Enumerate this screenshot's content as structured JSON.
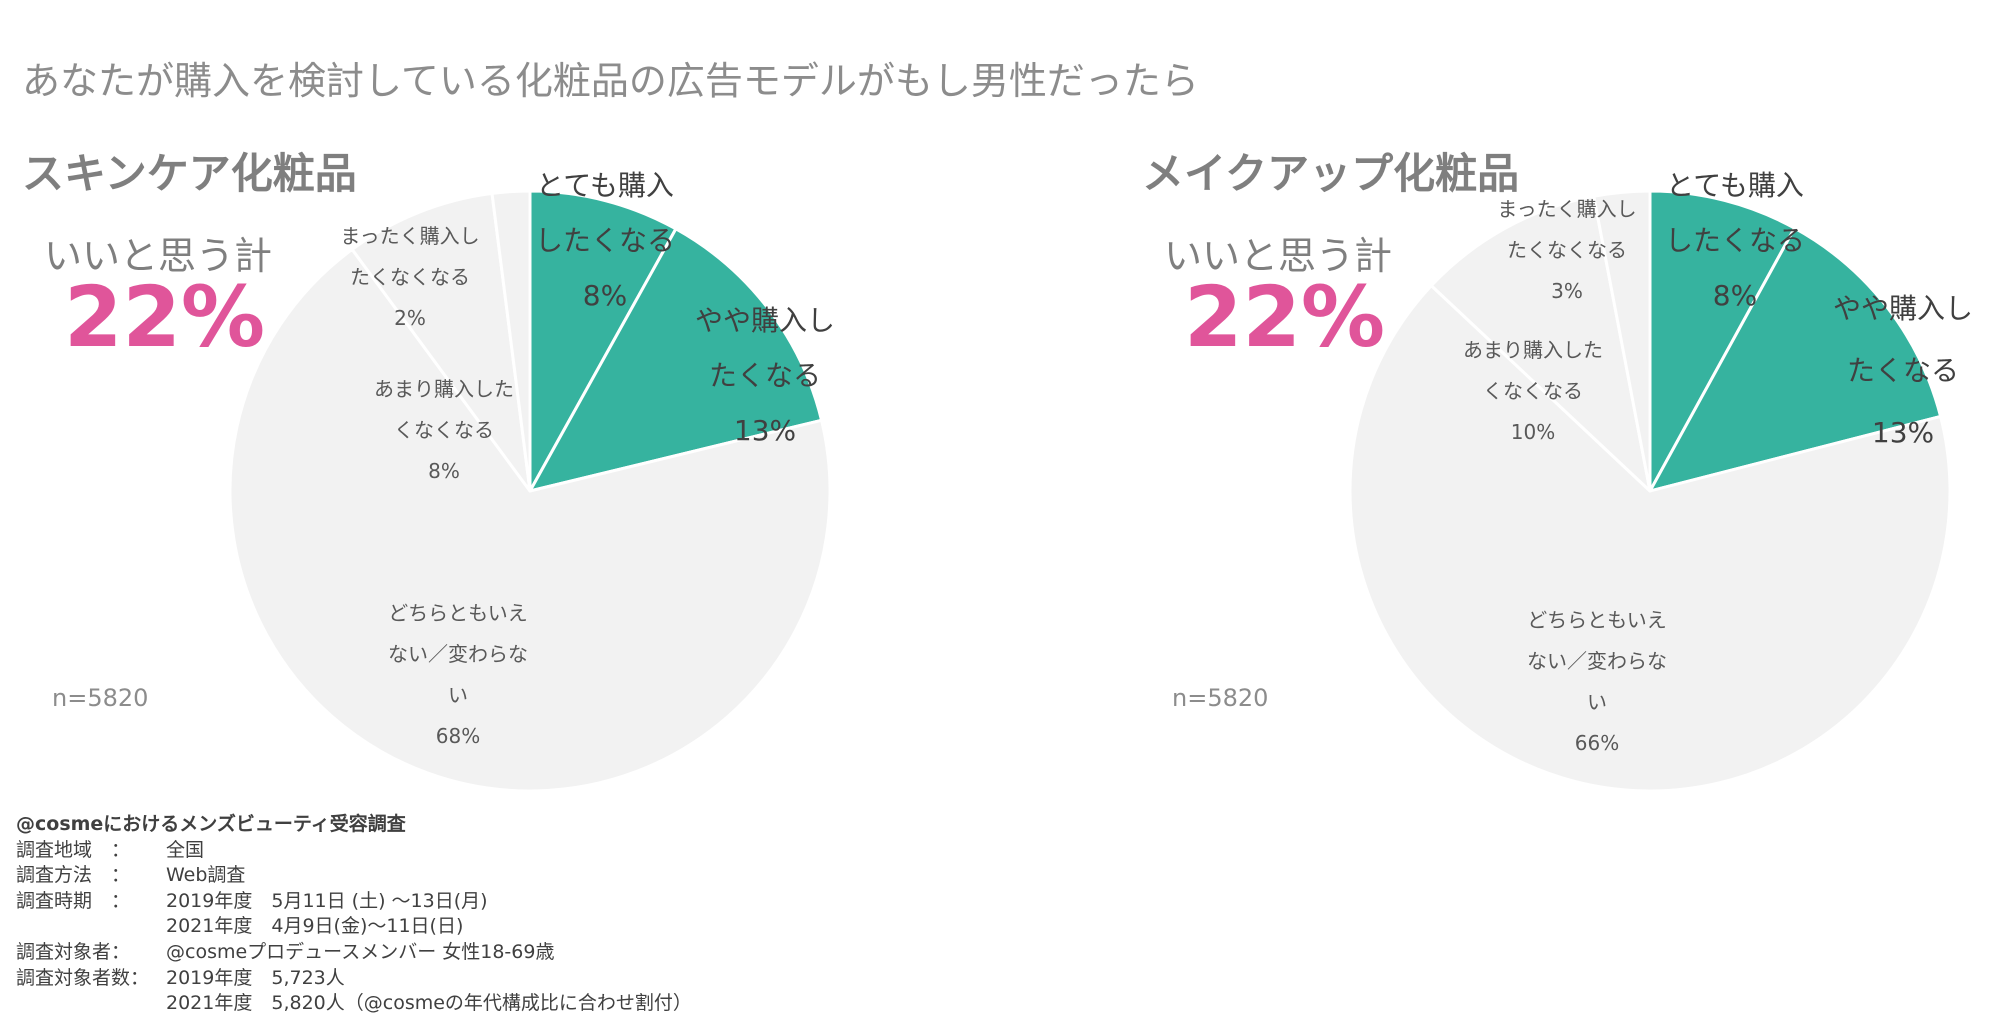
{
  "main_title": "あなたが購入を検討している化粧品の広告モデルがもし男性だったら",
  "colors": {
    "positive": "#36b39f",
    "neutral": "#f2f2f2",
    "separator": "#ffffff",
    "kpi": "#e0559a"
  },
  "chart_data": [
    {
      "type": "pie",
      "title": "スキンケア化粧品",
      "kpi_label": "いいと思う計",
      "kpi_value": "22%",
      "n_label": "n=5820",
      "slices": [
        {
          "name": "とても購入したくなる",
          "value": 8,
          "lines": [
            "とても購入",
            "したくなる"
          ],
          "pct": "8%",
          "color": "#36b39f",
          "size": "big"
        },
        {
          "name": "やや購入したくなる",
          "value": 13,
          "lines": [
            "やや購入し",
            "たくなる"
          ],
          "pct": "13%",
          "color": "#36b39f",
          "size": "big"
        },
        {
          "name": "どちらともいえない／変わらない",
          "value": 68,
          "lines": [
            "どちらともいえ",
            "ない／変わらな",
            "い"
          ],
          "pct": "68%",
          "color": "#f2f2f2",
          "size": "small"
        },
        {
          "name": "あまり購入したくなくなる",
          "value": 8,
          "lines": [
            "あまり購入した",
            "くなくなる"
          ],
          "pct": "8%",
          "color": "#f2f2f2",
          "size": "small"
        },
        {
          "name": "まったく購入したくなくなる",
          "value": 2,
          "lines": [
            "まったく購入し",
            "たくなくなる"
          ],
          "pct": "2%",
          "color": "#f2f2f2",
          "size": "small"
        }
      ]
    },
    {
      "type": "pie",
      "title": "メイクアップ化粧品",
      "kpi_label": "いいと思う計",
      "kpi_value": "22%",
      "n_label": "n=5820",
      "slices": [
        {
          "name": "とても購入したくなる",
          "value": 8,
          "lines": [
            "とても購入",
            "したくなる"
          ],
          "pct": "8%",
          "color": "#36b39f",
          "size": "big"
        },
        {
          "name": "やや購入したくなる",
          "value": 13,
          "lines": [
            "やや購入し",
            "たくなる"
          ],
          "pct": "13%",
          "color": "#36b39f",
          "size": "big"
        },
        {
          "name": "どちらともいえない／変わらない",
          "value": 66,
          "lines": [
            "どちらともいえ",
            "ない／変わらな",
            "い"
          ],
          "pct": "66%",
          "color": "#f2f2f2",
          "size": "small"
        },
        {
          "name": "あまり購入したくなくなる",
          "value": 10,
          "lines": [
            "あまり購入した",
            "くなくなる"
          ],
          "pct": "10%",
          "color": "#f2f2f2",
          "size": "small"
        },
        {
          "name": "まったく購入したくなくなる",
          "value": 3,
          "lines": [
            "まったく購入し",
            "たくなくなる"
          ],
          "pct": "3%",
          "color": "#f2f2f2",
          "size": "small"
        }
      ]
    }
  ],
  "footer": {
    "title": "@cosmeにおけるメンズビューティ受容調査",
    "rows": [
      {
        "key": "調査地域　：",
        "value": "全国"
      },
      {
        "key": "調査方法　：",
        "value": "Web調査"
      },
      {
        "key": "調査時期　：",
        "value": "2019年度　5月11日 (土) ～13日(月)"
      },
      {
        "key": "",
        "value": "2021年度　4月9日(金)～11日(日)"
      },
      {
        "key": "調査対象者：",
        "value": "@cosmeプロデュースメンバー 女性18-69歳"
      },
      {
        "key": "調査対象者数：",
        "value": "2019年度　5,723人"
      },
      {
        "key": "",
        "value": "2021年度　5,820人（@cosmeの年代構成比に合わせ割付）"
      }
    ]
  }
}
